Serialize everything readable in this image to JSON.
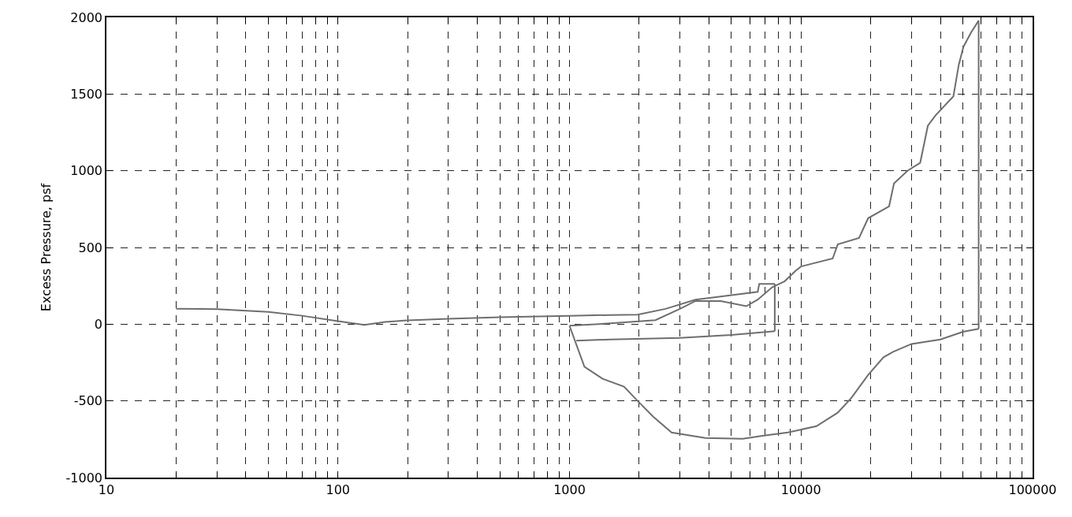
{
  "chart_data": {
    "type": "line",
    "ylabel": "Excess Pressure, psf",
    "log": "x",
    "grid": true,
    "marker": "none",
    "line_style": "solid",
    "xlim": [
      10,
      100000
    ],
    "ylim": [
      -1000,
      2000
    ],
    "xticks": [
      10,
      {
        "value": 20,
        "label": null
      },
      {
        "value": 30,
        "label": null
      },
      {
        "value": 40,
        "label": null
      },
      {
        "value": 50,
        "label": null
      },
      {
        "value": 60,
        "label": null
      },
      {
        "value": 70,
        "label": null
      },
      {
        "value": 80,
        "label": null
      },
      {
        "value": 90,
        "label": null
      },
      100,
      {
        "value": 200,
        "label": null
      },
      {
        "value": 300,
        "label": null
      },
      {
        "value": 400,
        "label": null
      },
      {
        "value": 500,
        "label": null
      },
      {
        "value": 600,
        "label": null
      },
      {
        "value": 700,
        "label": null
      },
      {
        "value": 800,
        "label": null
      },
      {
        "value": 900,
        "label": null
      },
      1000,
      {
        "value": 2000,
        "label": null
      },
      {
        "value": 3000,
        "label": null
      },
      {
        "value": 4000,
        "label": null
      },
      {
        "value": 5000,
        "label": null
      },
      {
        "value": 6000,
        "label": null
      },
      {
        "value": 7000,
        "label": null
      },
      {
        "value": 8000,
        "label": null
      },
      {
        "value": 9000,
        "label": null
      },
      10000,
      {
        "value": 20000,
        "label": null
      },
      {
        "value": 30000,
        "label": null
      },
      {
        "value": 40000,
        "label": null
      },
      {
        "value": 50000,
        "label": null
      },
      {
        "value": 60000,
        "label": null
      },
      {
        "value": 70000,
        "label": null
      },
      {
        "value": 80000,
        "label": null
      },
      {
        "value": 90000,
        "label": null
      },
      100000
    ],
    "yticks": [
      -1000,
      -500,
      0,
      500,
      1000,
      1500,
      2000
    ],
    "series": [
      {
        "color": "#6e6e6e",
        "x": [
          20,
          30,
          50,
          70,
          100,
          130,
          160,
          200,
          300,
          500,
          1000,
          1500,
          1970,
          2600,
          3500,
          4500,
          6500,
          6600,
          7000,
          7700
        ],
        "values": [
          100,
          98,
          80,
          55,
          20,
          -5,
          15,
          25,
          35,
          45,
          55,
          60,
          62,
          100,
          160,
          180,
          211,
          263,
          263,
          263
        ]
      },
      {
        "color": "#6e6e6e",
        "x": [
          7700,
          7700
        ],
        "values": [
          263,
          -46
        ]
      },
      {
        "color": "#6e6e6e",
        "x": [
          1070,
          1500,
          3000,
          5000,
          7700
        ],
        "values": [
          -107,
          -100,
          -90,
          -70,
          -46
        ]
      },
      {
        "color": "#6e6e6e",
        "x": [
          1000,
          1500,
          2350,
          3000,
          3500,
          4500,
          5800,
          6500,
          7500,
          8500,
          9500,
          10000,
          13700,
          14400,
          17800,
          19500,
          24000,
          25200,
          28800,
          32700,
          35300,
          38100,
          45500,
          48000,
          50300,
          54300,
          58500
        ],
        "values": [
          -10,
          5,
          26,
          100,
          151,
          151,
          117,
          160,
          240,
          280,
          350,
          376,
          428,
          520,
          562,
          691,
          768,
          917,
          1000,
          1052,
          1294,
          1361,
          1485,
          1691,
          1809,
          1902,
          1979
        ]
      },
      {
        "color": "#6e6e6e",
        "x": [
          58500,
          58500
        ],
        "values": [
          1979,
          -30
        ]
      },
      {
        "color": "#6e6e6e",
        "x": [
          1000,
          1160,
          1390,
          1720,
          1967,
          2300,
          2760,
          3860,
          5600,
          6900,
          8760,
          11650,
          14400,
          16400,
          19500,
          22700,
          25000,
          30000,
          40000,
          50000,
          58500
        ],
        "values": [
          -10,
          -278,
          -356,
          -407,
          -500,
          -603,
          -706,
          -742,
          -747,
          -727,
          -706,
          -665,
          -577,
          -485,
          -330,
          -216,
          -180,
          -129,
          -100,
          -50,
          -30
        ]
      }
    ]
  }
}
